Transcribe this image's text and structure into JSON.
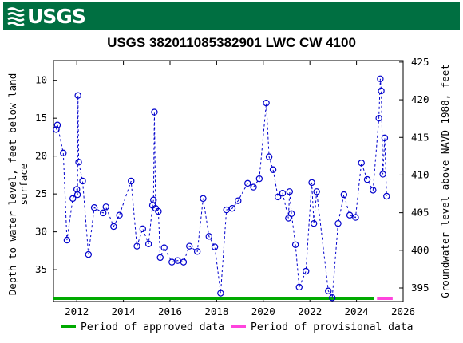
{
  "header": {
    "logo_text": "USGS"
  },
  "chart_data": {
    "type": "scatter",
    "title": "USGS 382011085382901 LWC CW 4100",
    "ylabel_left": "Depth to water level, feet below land surface",
    "ylabel_left_lines": [
      "Depth to water level, feet below land",
      "surface"
    ],
    "ylabel_right": "Groundwater level above NAVD 1988, feet",
    "xlim": [
      2011.0,
      2026.0
    ],
    "ylim_left": [
      39.2,
      7.4
    ],
    "ylim_right": [
      393.2,
      425.2
    ],
    "x_ticks": [
      2012,
      2014,
      2016,
      2018,
      2020,
      2022,
      2024,
      2026
    ],
    "y_ticks_left": [
      10,
      15,
      20,
      25,
      30,
      35
    ],
    "y_ticks_right": [
      395,
      400,
      405,
      410,
      415,
      420,
      425
    ],
    "grid": false,
    "series": [
      {
        "name": "Depth to water level",
        "color": "#0000cc",
        "marker": "open-circle",
        "line_style": "dashed",
        "points": [
          [
            2011.12,
            16.5
          ],
          [
            2011.17,
            15.9
          ],
          [
            2011.42,
            19.6
          ],
          [
            2011.58,
            31.1
          ],
          [
            2011.83,
            25.6
          ],
          [
            2012.0,
            24.4
          ],
          [
            2012.03,
            25.1
          ],
          [
            2012.05,
            12.0
          ],
          [
            2012.08,
            20.8
          ],
          [
            2012.25,
            23.3
          ],
          [
            2012.5,
            33.0
          ],
          [
            2012.75,
            26.8
          ],
          [
            2013.13,
            27.5
          ],
          [
            2013.25,
            26.7
          ],
          [
            2013.58,
            29.3
          ],
          [
            2013.83,
            27.8
          ],
          [
            2014.33,
            23.3
          ],
          [
            2014.58,
            31.9
          ],
          [
            2014.83,
            29.6
          ],
          [
            2015.08,
            31.6
          ],
          [
            2015.25,
            26.5
          ],
          [
            2015.29,
            25.8
          ],
          [
            2015.33,
            14.2
          ],
          [
            2015.38,
            26.9
          ],
          [
            2015.5,
            27.3
          ],
          [
            2015.58,
            33.4
          ],
          [
            2015.75,
            32.1
          ],
          [
            2016.08,
            34.0
          ],
          [
            2016.33,
            33.8
          ],
          [
            2016.58,
            34.0
          ],
          [
            2016.83,
            31.9
          ],
          [
            2017.17,
            32.6
          ],
          [
            2017.42,
            25.6
          ],
          [
            2017.67,
            30.6
          ],
          [
            2017.92,
            32.0
          ],
          [
            2018.17,
            38.1
          ],
          [
            2018.42,
            27.1
          ],
          [
            2018.67,
            26.9
          ],
          [
            2018.92,
            25.9
          ],
          [
            2019.33,
            23.6
          ],
          [
            2019.58,
            24.1
          ],
          [
            2019.83,
            23.0
          ],
          [
            2020.13,
            13.0
          ],
          [
            2020.25,
            20.1
          ],
          [
            2020.42,
            21.8
          ],
          [
            2020.63,
            25.4
          ],
          [
            2020.83,
            24.9
          ],
          [
            2021.08,
            28.2
          ],
          [
            2021.13,
            24.7
          ],
          [
            2021.21,
            27.6
          ],
          [
            2021.38,
            31.7
          ],
          [
            2021.54,
            37.3
          ],
          [
            2021.83,
            35.2
          ],
          [
            2022.08,
            23.5
          ],
          [
            2022.17,
            28.9
          ],
          [
            2022.29,
            24.7
          ],
          [
            2022.79,
            37.8
          ],
          [
            2022.96,
            38.7
          ],
          [
            2023.21,
            28.9
          ],
          [
            2023.46,
            25.1
          ],
          [
            2023.71,
            27.8
          ],
          [
            2023.96,
            28.1
          ],
          [
            2024.21,
            20.9
          ],
          [
            2024.46,
            23.1
          ],
          [
            2024.71,
            24.5
          ],
          [
            2024.96,
            15.0
          ],
          [
            2025.02,
            9.8
          ],
          [
            2025.06,
            11.4
          ],
          [
            2025.13,
            22.4
          ],
          [
            2025.21,
            17.6
          ],
          [
            2025.29,
            25.3
          ]
        ]
      }
    ],
    "periods": [
      {
        "label": "Period of approved data",
        "color": "#00aa00",
        "start": 2011.0,
        "end": 2024.75
      },
      {
        "label": "Period of provisional data",
        "color": "#ff44dd",
        "start": 2024.88,
        "end": 2025.55
      }
    ],
    "legend_position": "bottom"
  }
}
